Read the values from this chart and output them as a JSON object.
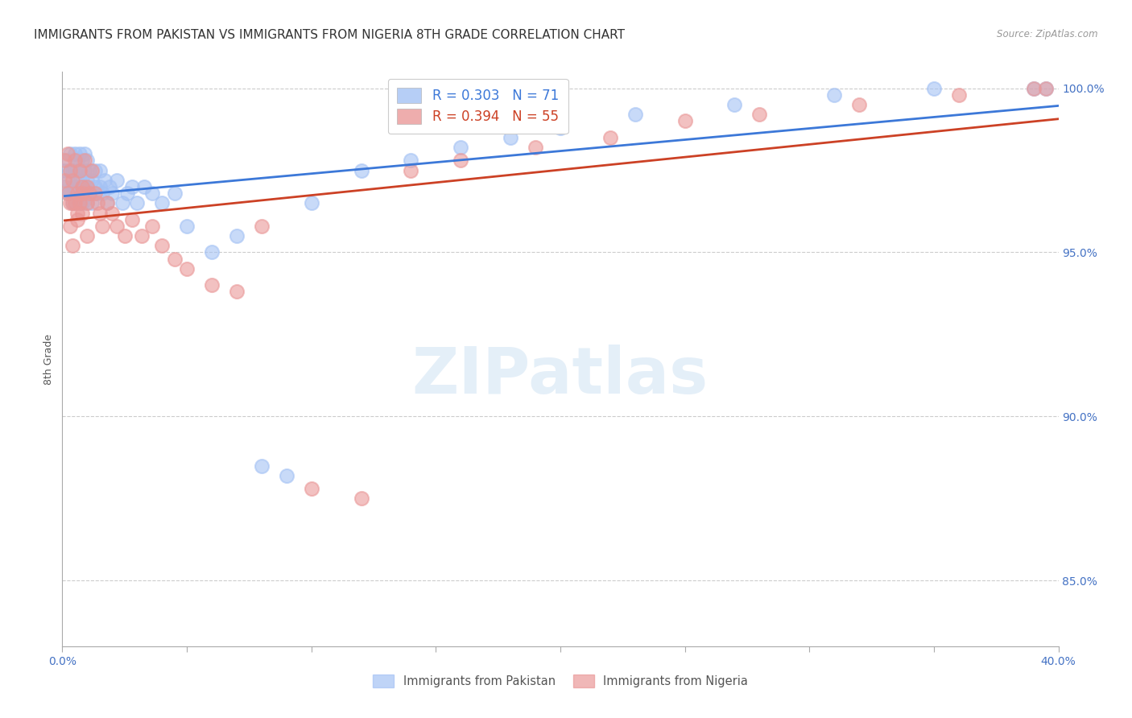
{
  "title": "IMMIGRANTS FROM PAKISTAN VS IMMIGRANTS FROM NIGERIA 8TH GRADE CORRELATION CHART",
  "source_text": "Source: ZipAtlas.com",
  "ylabel": "8th Grade",
  "xlim": [
    0.0,
    0.4
  ],
  "ylim": [
    0.83,
    1.005
  ],
  "ytick_positions": [
    0.85,
    0.9,
    0.95,
    1.0
  ],
  "yticklabels": [
    "85.0%",
    "90.0%",
    "95.0%",
    "100.0%"
  ],
  "R_pakistan": 0.303,
  "N_pakistan": 71,
  "R_nigeria": 0.394,
  "N_nigeria": 55,
  "pakistan_color": "#a4c2f4",
  "nigeria_color": "#ea9999",
  "trend_pakistan_color": "#3c78d8",
  "trend_nigeria_color": "#cc4125",
  "legend_label_pakistan": "Immigrants from Pakistan",
  "legend_label_nigeria": "Immigrants from Nigeria",
  "pakistan_x": [
    0.001,
    0.001,
    0.002,
    0.002,
    0.002,
    0.003,
    0.003,
    0.003,
    0.004,
    0.004,
    0.004,
    0.005,
    0.005,
    0.005,
    0.005,
    0.006,
    0.006,
    0.006,
    0.007,
    0.007,
    0.007,
    0.007,
    0.008,
    0.008,
    0.008,
    0.009,
    0.009,
    0.009,
    0.01,
    0.01,
    0.01,
    0.011,
    0.011,
    0.012,
    0.012,
    0.013,
    0.013,
    0.014,
    0.015,
    0.015,
    0.016,
    0.017,
    0.018,
    0.019,
    0.02,
    0.022,
    0.024,
    0.026,
    0.028,
    0.03,
    0.033,
    0.036,
    0.04,
    0.045,
    0.05,
    0.06,
    0.07,
    0.08,
    0.09,
    0.1,
    0.12,
    0.14,
    0.16,
    0.18,
    0.2,
    0.23,
    0.27,
    0.31,
    0.35,
    0.39,
    0.395
  ],
  "pakistan_y": [
    0.975,
    0.97,
    0.978,
    0.972,
    0.968,
    0.98,
    0.975,
    0.968,
    0.975,
    0.97,
    0.965,
    0.98,
    0.975,
    0.97,
    0.965,
    0.978,
    0.972,
    0.968,
    0.98,
    0.975,
    0.97,
    0.965,
    0.978,
    0.972,
    0.965,
    0.98,
    0.975,
    0.97,
    0.978,
    0.972,
    0.965,
    0.975,
    0.968,
    0.972,
    0.965,
    0.97,
    0.975,
    0.968,
    0.975,
    0.97,
    0.968,
    0.972,
    0.965,
    0.97,
    0.968,
    0.972,
    0.965,
    0.968,
    0.97,
    0.965,
    0.97,
    0.968,
    0.965,
    0.968,
    0.958,
    0.95,
    0.955,
    0.885,
    0.882,
    0.965,
    0.975,
    0.978,
    0.982,
    0.985,
    0.988,
    0.992,
    0.995,
    0.998,
    1.0,
    1.0,
    1.0
  ],
  "nigeria_x": [
    0.001,
    0.001,
    0.002,
    0.002,
    0.003,
    0.003,
    0.004,
    0.004,
    0.005,
    0.005,
    0.006,
    0.006,
    0.007,
    0.007,
    0.008,
    0.008,
    0.009,
    0.01,
    0.01,
    0.011,
    0.012,
    0.013,
    0.014,
    0.015,
    0.016,
    0.018,
    0.02,
    0.022,
    0.025,
    0.028,
    0.032,
    0.036,
    0.04,
    0.045,
    0.05,
    0.06,
    0.07,
    0.08,
    0.1,
    0.12,
    0.14,
    0.16,
    0.19,
    0.22,
    0.25,
    0.28,
    0.32,
    0.36,
    0.39,
    0.395,
    0.003,
    0.004,
    0.006,
    0.008,
    0.01
  ],
  "nigeria_y": [
    0.978,
    0.972,
    0.98,
    0.968,
    0.975,
    0.965,
    0.972,
    0.965,
    0.978,
    0.965,
    0.968,
    0.962,
    0.975,
    0.965,
    0.962,
    0.97,
    0.978,
    0.965,
    0.97,
    0.968,
    0.975,
    0.968,
    0.965,
    0.962,
    0.958,
    0.965,
    0.962,
    0.958,
    0.955,
    0.96,
    0.955,
    0.958,
    0.952,
    0.948,
    0.945,
    0.94,
    0.938,
    0.958,
    0.878,
    0.875,
    0.975,
    0.978,
    0.982,
    0.985,
    0.99,
    0.992,
    0.995,
    0.998,
    1.0,
    1.0,
    0.958,
    0.952,
    0.96,
    0.968,
    0.955
  ],
  "watermark_text": "ZIPatlas",
  "background_color": "#ffffff",
  "grid_color": "#cccccc",
  "tick_label_color": "#4472c4",
  "title_fontsize": 11,
  "axis_label_fontsize": 9,
  "tick_fontsize": 10
}
